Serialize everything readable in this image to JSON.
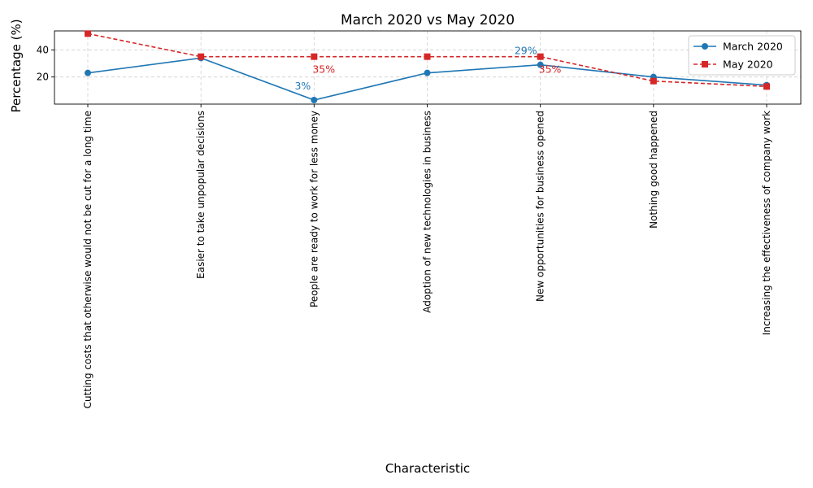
{
  "chart_data": {
    "type": "line",
    "title": "March 2020 vs May 2020",
    "xlabel": "Characteristic",
    "ylabel": "Percentage (%)",
    "ylim": [
      0,
      54
    ],
    "yticks": [
      20,
      40
    ],
    "grid": true,
    "legend_position": "top-right",
    "categories": [
      "Cutting costs that otherwise would not be cut for a long time",
      "Easier to take unpopular decisions",
      "People are ready to work for less money",
      "Adoption of new technologies in business",
      "New opportunities for business opened",
      "Nothing good happened",
      "Increasing the effectiveness of company work"
    ],
    "series": [
      {
        "name": "March 2020",
        "values": [
          23,
          34,
          3,
          23,
          29,
          20,
          14
        ],
        "color": "#1f77b4",
        "marker": "circle",
        "line_style": "solid"
      },
      {
        "name": "May 2020",
        "values": [
          52,
          35,
          35,
          35,
          35,
          17,
          13
        ],
        "color": "#d62728",
        "marker": "square",
        "line_style": "dashed"
      }
    ],
    "annotations": [
      {
        "text": "3%",
        "series": 0,
        "index": 2,
        "placement": "above-left"
      },
      {
        "text": "35%",
        "series": 1,
        "index": 2,
        "placement": "below-right"
      },
      {
        "text": "29%",
        "series": 0,
        "index": 4,
        "placement": "above-left"
      },
      {
        "text": "35%",
        "series": 1,
        "index": 4,
        "placement": "below-right"
      }
    ]
  }
}
